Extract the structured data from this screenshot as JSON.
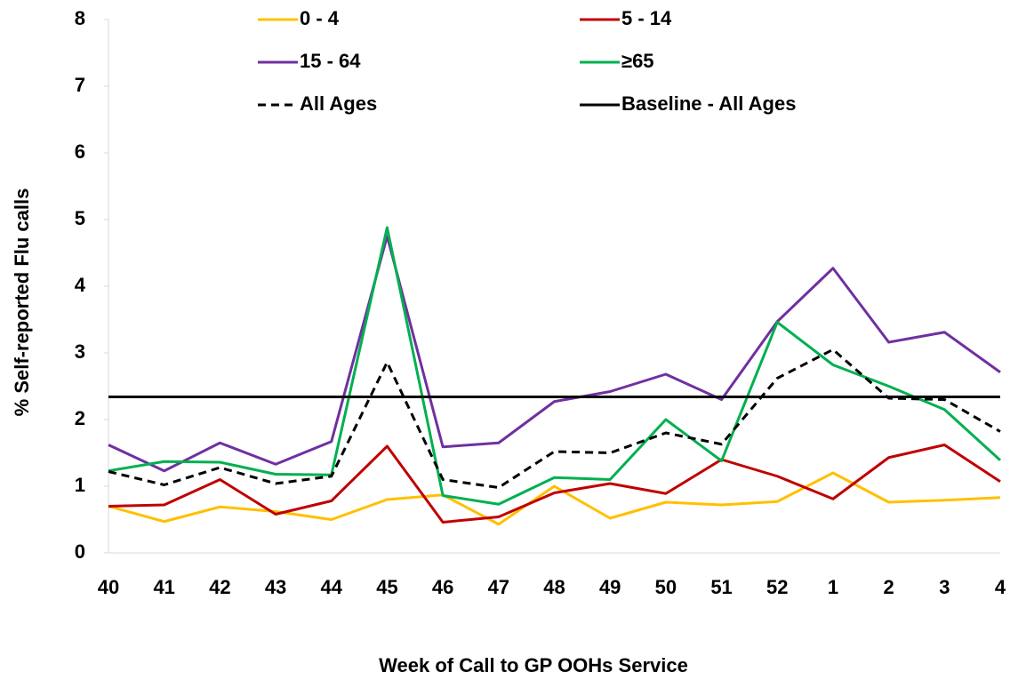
{
  "chart_data": {
    "type": "line",
    "x_label": "Week of Call to GP OOHs Service",
    "y_label": "% Self-reported Flu calls",
    "categories": [
      "40",
      "41",
      "42",
      "43",
      "44",
      "45",
      "46",
      "47",
      "48",
      "49",
      "50",
      "51",
      "52",
      "1",
      "2",
      "3",
      "4"
    ],
    "ylim": [
      0,
      8
    ],
    "yticks": [
      0,
      1,
      2,
      3,
      4,
      5,
      6,
      7,
      8
    ],
    "series": [
      {
        "name": "0 - 4",
        "color": "#FFC000",
        "values": [
          0.7,
          0.47,
          0.69,
          0.62,
          0.5,
          0.8,
          0.87,
          0.43,
          1.0,
          0.52,
          0.76,
          0.72,
          0.77,
          1.2,
          0.76,
          0.79,
          0.83
        ]
      },
      {
        "name": "5 - 14",
        "color": "#C00000",
        "values": [
          0.7,
          0.72,
          1.1,
          0.58,
          0.78,
          1.6,
          0.46,
          0.54,
          0.9,
          1.04,
          0.89,
          1.4,
          1.15,
          0.81,
          1.43,
          1.62,
          1.07
        ]
      },
      {
        "name": "15 - 64",
        "color": "#7030A0",
        "values": [
          1.62,
          1.23,
          1.65,
          1.33,
          1.67,
          4.75,
          1.59,
          1.65,
          2.27,
          2.42,
          2.68,
          2.3,
          3.47,
          4.27,
          3.16,
          3.31,
          2.71
        ]
      },
      {
        "name": "≥65",
        "color": "#00B050",
        "values": [
          1.23,
          1.37,
          1.36,
          1.18,
          1.17,
          4.88,
          0.86,
          0.73,
          1.13,
          1.1,
          2.0,
          1.38,
          3.46,
          2.82,
          2.5,
          2.15,
          1.39
        ]
      },
      {
        "name": "All Ages",
        "color": "#000000",
        "dashed": true,
        "values": [
          1.22,
          1.02,
          1.28,
          1.04,
          1.15,
          2.86,
          1.1,
          0.98,
          1.52,
          1.5,
          1.8,
          1.63,
          2.62,
          3.05,
          2.32,
          2.3,
          1.82
        ]
      },
      {
        "name": "Baseline - All Ages",
        "color": "#000000",
        "values": [
          2.34,
          2.34,
          2.34,
          2.34,
          2.34,
          2.34,
          2.34,
          2.34,
          2.34,
          2.34,
          2.34,
          2.34,
          2.34,
          2.34,
          2.34,
          2.34,
          2.34
        ]
      }
    ]
  }
}
